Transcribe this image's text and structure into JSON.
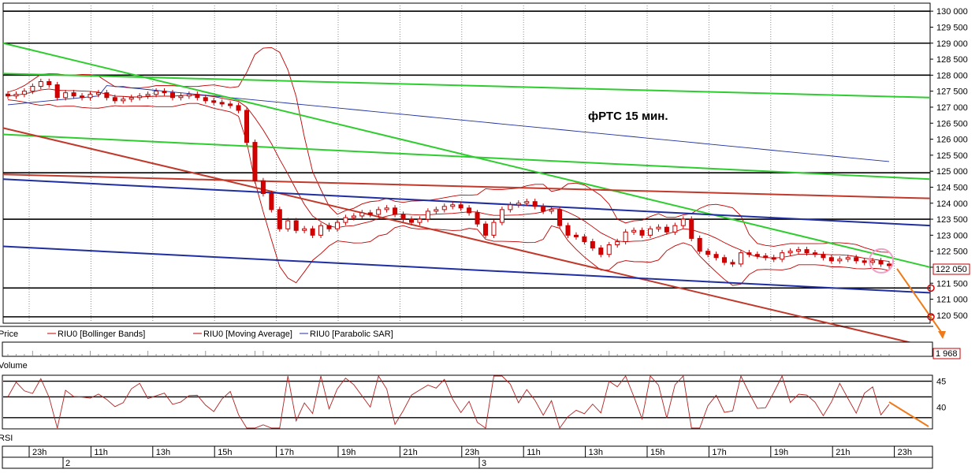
{
  "chart_data": {
    "type": "candlestick",
    "annotation": "фРТС  15 мин.",
    "price_axis": {
      "min": 120250,
      "max": 130250,
      "ticks": [
        "130 000",
        "129 500",
        "129 000",
        "128 500",
        "128 000",
        "127 500",
        "127 000",
        "126 500",
        "126 000",
        "125 500",
        "125 000",
        "124 500",
        "124 000",
        "123 500",
        "123 000",
        "122 500",
        "122 000",
        "121 500",
        "121 000",
        "120 500"
      ],
      "tick_values": [
        130000,
        129500,
        129000,
        128500,
        128000,
        127500,
        127000,
        126500,
        126000,
        125500,
        125000,
        124500,
        124000,
        123500,
        123000,
        122500,
        122000,
        121500,
        121000,
        120500
      ]
    },
    "last_price_label": "122 050",
    "last_price": 122050,
    "volume_label": "1 968",
    "rsi_axis": {
      "min": 36,
      "max": 46,
      "ticks": [
        "45",
        "40"
      ],
      "tick_values": [
        45,
        40
      ]
    },
    "legend": [
      {
        "text": "Price",
        "color": "#c00000"
      },
      {
        "text": "RIU0 [Bollinger Bands]",
        "color": "#c00000"
      },
      {
        "text": "RIU0 [Moving Average]",
        "color": "#c00000"
      },
      {
        "text": "RIU0 [Parabolic SAR]",
        "color": "#1f2fa0"
      }
    ],
    "panel_labels": {
      "volume": "Volume",
      "rsi": "RSI"
    },
    "time_labels": [
      "23h",
      "11h",
      "13h",
      "15h",
      "17h",
      "19h",
      "21h",
      "23h",
      "11h",
      "13h",
      "15h",
      "17h",
      "19h",
      "21h",
      "23h"
    ],
    "day_labels": [
      "2",
      "3"
    ],
    "closes": [
      127350,
      127400,
      127500,
      127650,
      127800,
      127700,
      127300,
      127450,
      127350,
      127300,
      127400,
      127450,
      127300,
      127200,
      127250,
      127300,
      127350,
      127400,
      127500,
      127450,
      127300,
      127350,
      127400,
      127300,
      127200,
      127150,
      127100,
      127050,
      126900,
      125900,
      124700,
      124300,
      123800,
      123200,
      123450,
      123150,
      123200,
      123000,
      123300,
      123200,
      123400,
      123550,
      123600,
      123700,
      123650,
      123800,
      123850,
      123650,
      123500,
      123400,
      123500,
      123750,
      123800,
      123900,
      123950,
      123850,
      123700,
      123350,
      123000,
      123400,
      123800,
      123950,
      124000,
      124050,
      123900,
      123750,
      123800,
      123300,
      123000,
      122950,
      122800,
      122600,
      122400,
      122700,
      122800,
      123100,
      123150,
      123000,
      123200,
      123250,
      123100,
      123300,
      123500,
      122900,
      122500,
      122400,
      122300,
      122150,
      122100,
      122450,
      122400,
      122350,
      122300,
      122250,
      122450,
      122500,
      122550,
      122450,
      122400,
      122300,
      122200,
      122250,
      122300,
      122200,
      122150,
      122200,
      122100,
      122050
    ],
    "trendlines": [
      {
        "color": "#2ecc2e",
        "y0": 129000,
        "y1": 122000
      },
      {
        "color": "#2ecc2e",
        "y0": 128050,
        "y1": 127300
      },
      {
        "color": "#2ecc2e",
        "y0": 126150,
        "y1": 124750
      },
      {
        "color": "#c0392b",
        "y0": 126350,
        "y1": 119500
      },
      {
        "color": "#c0392b",
        "y0": 124900,
        "y1": 124150
      },
      {
        "color": "#1f2fa0",
        "y0": 124750,
        "y1": 123300
      },
      {
        "color": "#1f2fa0",
        "y0": 122650,
        "y1": 121200
      }
    ],
    "horizontal_levels": [
      130000,
      129000,
      128000,
      124950,
      123500,
      121350,
      120450
    ]
  }
}
